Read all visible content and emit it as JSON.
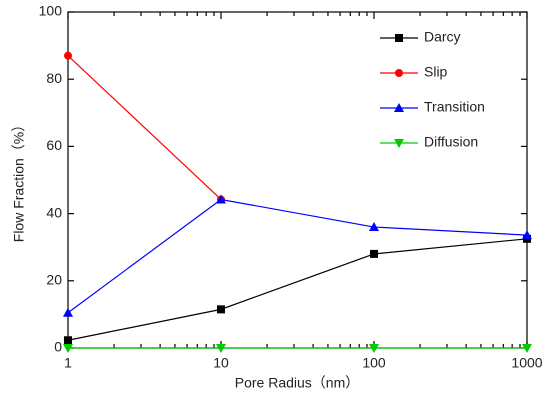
{
  "chart_data": {
    "type": "line",
    "x_label": "Pore Radius（nm）",
    "y_label": "Flow Fraction（%）",
    "x": [
      1,
      10,
      100,
      1000
    ],
    "xscale": "log",
    "xlim": [
      1,
      1000
    ],
    "xticks": [
      1,
      10,
      100,
      1000
    ],
    "xminorticks": [
      2,
      3,
      4,
      5,
      6,
      7,
      8,
      9,
      20,
      30,
      40,
      50,
      60,
      70,
      80,
      90,
      200,
      300,
      400,
      500,
      600,
      700,
      800,
      900
    ],
    "ylim": [
      0,
      100
    ],
    "yticks": [
      0,
      20,
      40,
      60,
      80,
      100
    ],
    "legend": "upper right",
    "series": [
      {
        "name": "Darcy",
        "color": "#000000",
        "marker": "square",
        "values": [
          2.3,
          11.5,
          28,
          32.5
        ]
      },
      {
        "name": "Slip",
        "color": "#ff0000",
        "marker": "circle",
        "values": [
          87,
          44.2,
          null,
          null
        ]
      },
      {
        "name": "Transition",
        "color": "#0000ff",
        "marker": "triangle-up",
        "values": [
          10.5,
          44.2,
          36,
          33.6
        ]
      },
      {
        "name": "Diffusion",
        "color": "#00cc00",
        "marker": "triangle-down",
        "values": [
          0,
          0,
          0,
          0
        ]
      }
    ]
  }
}
